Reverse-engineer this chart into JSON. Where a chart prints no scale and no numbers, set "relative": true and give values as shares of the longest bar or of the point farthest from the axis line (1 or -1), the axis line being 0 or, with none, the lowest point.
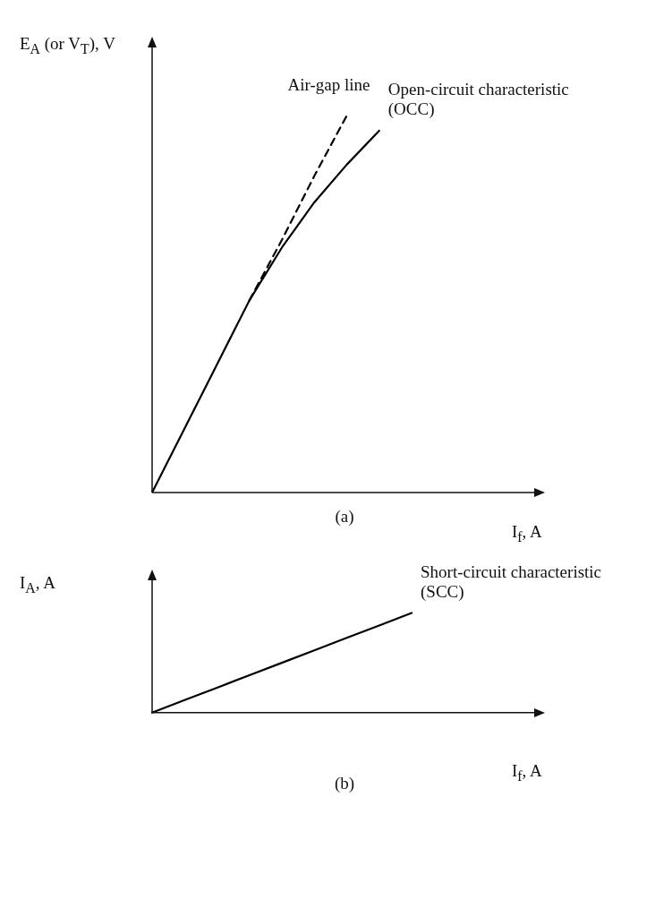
{
  "chart_data": [
    {
      "type": "line",
      "relative": true,
      "xlabel": "I$_{f}$, A",
      "ylabel": "E$_{A}$ (or V$_{T}$), V",
      "categories": [
        null,
        null,
        null,
        null,
        null,
        null,
        null,
        null,
        null,
        null,
        null,
        null,
        null
      ],
      "legend": false,
      "marker": "none",
      "grid": false,
      "annotations": [
        "(a)"
      ],
      "series": [
        {
          "name": "Air-gap line",
          "color": "#000000",
          "line_style": "dashed",
          "values": [
            null,
            null,
            null,
            0.51,
            0.67,
            0.84,
            1.0,
            null,
            null,
            null,
            null,
            null,
            null
          ]
        },
        {
          "name": "Open-circuit characteristic (OCC)",
          "color": "#000000",
          "line_style": "solid",
          "values": [
            0,
            0.17,
            0.34,
            0.51,
            0.65,
            0.77,
            0.87,
            0.96,
            null,
            null,
            null,
            null,
            null
          ]
        }
      ]
    },
    {
      "type": "line",
      "relative": true,
      "xlabel": "I$_{f}$, A",
      "ylabel": "I$_{A}$, A",
      "categories": [
        null,
        null,
        null,
        null,
        null,
        null,
        null,
        null,
        null,
        null,
        null,
        null,
        null
      ],
      "legend": false,
      "marker": "none",
      "grid": false,
      "annotations": [
        "(b)"
      ],
      "series": [
        {
          "name": "Short-circuit characteristic (SCC)",
          "color": "#000000",
          "line_style": "solid",
          "values": [
            0,
            0.125,
            0.25,
            0.375,
            0.5,
            0.625,
            0.75,
            0.875,
            1.0,
            null,
            null,
            null,
            null
          ]
        }
      ]
    }
  ]
}
